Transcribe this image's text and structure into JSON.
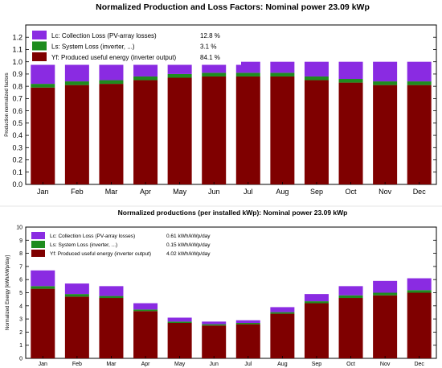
{
  "colors": {
    "collection_loss": "#8a2be2",
    "system_loss": "#1e8c1e",
    "useful_energy": "#7f0000",
    "axis": "#000000"
  },
  "chart_data": [
    {
      "type": "bar",
      "stacked": true,
      "title": "Normalized Production and Loss Factors:  Nominal power 23.09 kWp",
      "ylabel": "Production normalized factors",
      "xlabel": "",
      "ylim": [
        0,
        1.3
      ],
      "yticks": [
        "0.0",
        "0.1",
        "0.2",
        "0.3",
        "0.4",
        "0.5",
        "0.6",
        "0.7",
        "0.8",
        "0.9",
        "1.0",
        "1.1",
        "1.2"
      ],
      "grid": false,
      "legend_position": "top-left",
      "categories": [
        "Jan",
        "Feb",
        "Mar",
        "Apr",
        "May",
        "Jun",
        "Jul",
        "Aug",
        "Sep",
        "Oct",
        "Nov",
        "Dec"
      ],
      "series": [
        {
          "name": "Yf: Produced useful energy  (inverter output)",
          "legend_value": "84.1 %",
          "values": [
            0.79,
            0.81,
            0.82,
            0.85,
            0.87,
            0.88,
            0.88,
            0.88,
            0.85,
            0.83,
            0.81,
            0.81
          ]
        },
        {
          "name": "Ls: System Loss  (inverter, ...)",
          "legend_value": "3.1 %",
          "values": [
            0.03,
            0.03,
            0.03,
            0.03,
            0.03,
            0.03,
            0.03,
            0.03,
            0.03,
            0.03,
            0.03,
            0.03
          ]
        },
        {
          "name": "Lc: Collection Loss (PV-array losses)",
          "legend_value": "12.8 %",
          "values": [
            0.18,
            0.16,
            0.15,
            0.12,
            0.1,
            0.09,
            0.09,
            0.09,
            0.12,
            0.14,
            0.16,
            0.16
          ]
        }
      ]
    },
    {
      "type": "bar",
      "stacked": true,
      "title": "Normalized productions (per installed kWp):  Nominal power 23.09 kWp",
      "ylabel": "Normalized Energy  [kWh/kWp/day]",
      "xlabel": "",
      "ylim": [
        0,
        10
      ],
      "yticks": [
        "0",
        "1",
        "2",
        "3",
        "4",
        "5",
        "6",
        "7",
        "8",
        "9",
        "10"
      ],
      "grid": false,
      "legend_position": "top-left",
      "categories": [
        "Jan",
        "Feb",
        "Mar",
        "Apr",
        "May",
        "Jun",
        "Jul",
        "Aug",
        "Sep",
        "Oct",
        "Nov",
        "Dec"
      ],
      "series": [
        {
          "name": "Yf: Produced useful energy  (inverter output)",
          "legend_value": "4.02 kWh/kWp/day",
          "values": [
            5.3,
            4.7,
            4.6,
            3.6,
            2.7,
            2.5,
            2.6,
            3.4,
            4.2,
            4.6,
            4.8,
            5.0
          ]
        },
        {
          "name": "Ls: System Loss  (inverter, ...)",
          "legend_value": "0.15 kWh/kWp/day",
          "values": [
            0.2,
            0.2,
            0.15,
            0.12,
            0.1,
            0.1,
            0.1,
            0.12,
            0.15,
            0.2,
            0.2,
            0.2
          ]
        },
        {
          "name": "Lc: Collection Loss (PV-array losses)",
          "legend_value": "0.61 kWh/kWp/day",
          "values": [
            1.2,
            0.8,
            0.75,
            0.48,
            0.3,
            0.2,
            0.2,
            0.38,
            0.55,
            0.7,
            0.9,
            0.9
          ]
        }
      ]
    }
  ]
}
